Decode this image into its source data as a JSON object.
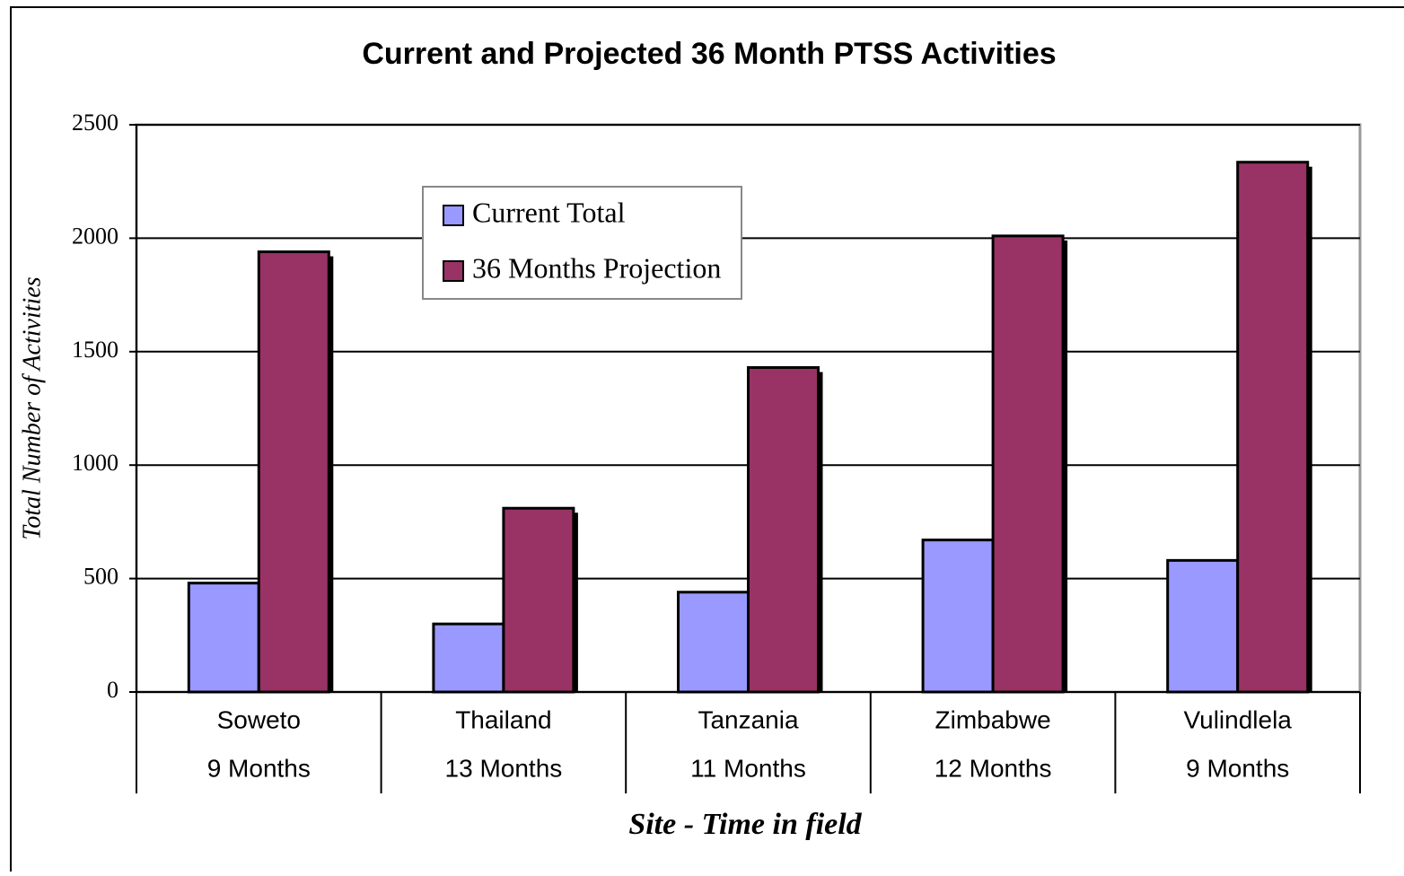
{
  "chart_data": {
    "type": "bar",
    "title": "Current and Projected 36 Month PTSS Activities",
    "x_label": "Site - Time in field",
    "y_label": "Total Number of Activities",
    "categories": [
      [
        "Soweto",
        "9 Months"
      ],
      [
        "Thailand",
        "13 Months"
      ],
      [
        "Tanzania",
        "11 Months"
      ],
      [
        "Zimbabwe",
        "12 Months"
      ],
      [
        "Vulindlela",
        "9 Months"
      ]
    ],
    "series": [
      {
        "name": "Current Total",
        "color": "#9999ff",
        "values": [
          480,
          300,
          440,
          670,
          580
        ]
      },
      {
        "name": "36 Months Projection",
        "color": "#993366",
        "values": [
          1940,
          810,
          1430,
          2010,
          2335
        ]
      }
    ],
    "ylim": [
      0,
      2500
    ],
    "yticks": [
      0,
      500,
      1000,
      1500,
      2000,
      2500
    ],
    "grid": true
  }
}
